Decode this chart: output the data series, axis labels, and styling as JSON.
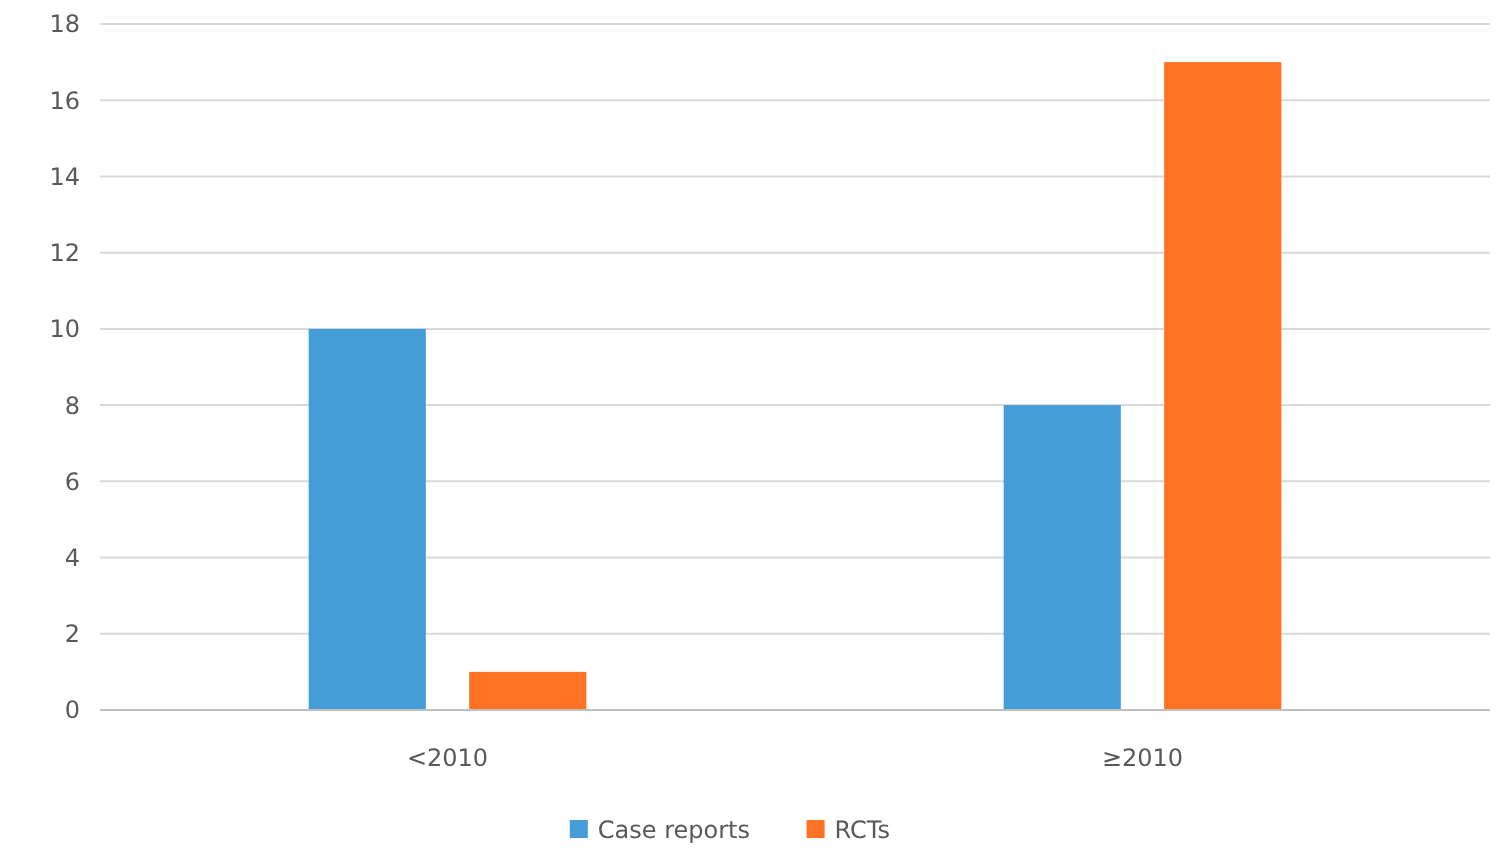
{
  "chart_data": {
    "type": "bar",
    "categories": [
      "<2010",
      "≥2010"
    ],
    "series": [
      {
        "name": "Case reports",
        "color": "#449dd7",
        "values": [
          10,
          8
        ]
      },
      {
        "name": "RCTs",
        "color": "#ff7123",
        "values": [
          1,
          17
        ]
      }
    ],
    "ylim": [
      0,
      18
    ],
    "yticks": [
      0,
      2,
      4,
      6,
      8,
      10,
      12,
      14,
      16,
      18
    ],
    "grid": "y",
    "legend": "bottom"
  }
}
